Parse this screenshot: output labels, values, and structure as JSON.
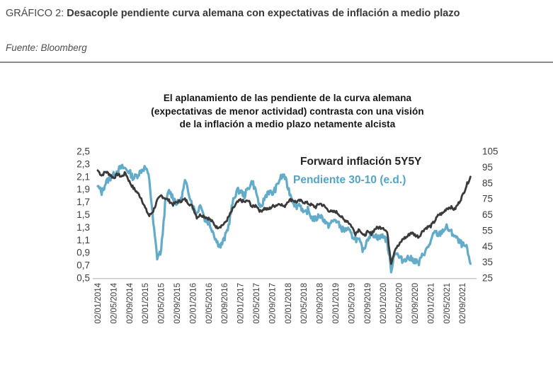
{
  "header": {
    "label": "GRÁFICO 2:",
    "title": "Desacople pendiente curva alemana con expectativas de inflación a medio plazo",
    "source": "Fuente: Bloomberg"
  },
  "chart": {
    "title_lines": [
      "El aplanamiento de las pendiente de la curva alemana",
      "(expectativas de menor actividad) contrasta con una visión",
      "de la inflación a medio plazo netamente alcista"
    ],
    "legend": [
      {
        "label": "Forward inflación 5Y5Y",
        "color": "#252525"
      },
      {
        "label": "Pendiente 30-10 (e.d.)",
        "color": "#54a4c6"
      }
    ]
  },
  "chart_data": {
    "type": "line",
    "title": "El aplanamiento de las pendiente de la curva alemana (expectativas de menor actividad) contrasta con una visión de la inflación a medio plazo netamente alcista",
    "grid": false,
    "legend_position": "top-right",
    "left_axis": {
      "ticks": [
        "2,5",
        "2,3",
        "2,1",
        "1,9",
        "1,7",
        "1,5",
        "1,3",
        "1,1",
        "0,9",
        "0,7",
        "0,5"
      ],
      "range": [
        0.5,
        2.5
      ]
    },
    "right_axis": {
      "ticks": [
        "105",
        "95",
        "85",
        "75",
        "65",
        "55",
        "45",
        "35",
        "25"
      ],
      "range": [
        25,
        105
      ]
    },
    "x_axis": {
      "ticks": [
        "02/01/2014",
        "02/05/2014",
        "02/09/2014",
        "02/01/2015",
        "02/05/2015",
        "02/09/2015",
        "02/01/2016",
        "02/05/2016",
        "02/09/2016",
        "02/01/2017",
        "02/05/2017",
        "02/09/2017",
        "02/01/2018",
        "02/05/2018",
        "02/09/2018",
        "02/01/2019",
        "02/05/2019",
        "02/09/2019",
        "02/01/2020",
        "02/05/2020",
        "02/09/2020",
        "02/01/2021",
        "02/05/2021",
        "02/09/2021"
      ]
    },
    "x_monthly": [
      "2014-01",
      "2014-02",
      "2014-03",
      "2014-04",
      "2014-05",
      "2014-06",
      "2014-07",
      "2014-08",
      "2014-09",
      "2014-10",
      "2014-11",
      "2014-12",
      "2015-01",
      "2015-02",
      "2015-03",
      "2015-04",
      "2015-05",
      "2015-06",
      "2015-07",
      "2015-08",
      "2015-09",
      "2015-10",
      "2015-11",
      "2015-12",
      "2016-01",
      "2016-02",
      "2016-03",
      "2016-04",
      "2016-05",
      "2016-06",
      "2016-07",
      "2016-08",
      "2016-09",
      "2016-10",
      "2016-11",
      "2016-12",
      "2017-01",
      "2017-02",
      "2017-03",
      "2017-04",
      "2017-05",
      "2017-06",
      "2017-07",
      "2017-08",
      "2017-09",
      "2017-10",
      "2017-11",
      "2017-12",
      "2018-01",
      "2018-02",
      "2018-03",
      "2018-04",
      "2018-05",
      "2018-06",
      "2018-07",
      "2018-08",
      "2018-09",
      "2018-10",
      "2018-11",
      "2018-12",
      "2019-01",
      "2019-02",
      "2019-03",
      "2019-04",
      "2019-05",
      "2019-06",
      "2019-07",
      "2019-08",
      "2019-09",
      "2019-10",
      "2019-11",
      "2019-12",
      "2020-01",
      "2020-02",
      "2020-03",
      "2020-04",
      "2020-05",
      "2020-06",
      "2020-07",
      "2020-08",
      "2020-09",
      "2020-10",
      "2020-11",
      "2020-12",
      "2021-01",
      "2021-02",
      "2021-03",
      "2021-04",
      "2021-05",
      "2021-06",
      "2021-07",
      "2021-08",
      "2021-09",
      "2021-10",
      "2021-11"
    ],
    "series": [
      {
        "name": "Forward inflación 5Y5Y",
        "axis": "left",
        "color": "#3a3a3a",
        "values": [
          2.2,
          2.12,
          2.18,
          2.14,
          2.08,
          2.14,
          2.1,
          2.16,
          2.02,
          1.92,
          1.85,
          1.76,
          1.6,
          1.48,
          1.56,
          1.72,
          1.8,
          1.76,
          1.72,
          1.66,
          1.7,
          1.72,
          1.74,
          1.68,
          1.62,
          1.46,
          1.5,
          1.47,
          1.44,
          1.38,
          1.3,
          1.32,
          1.36,
          1.46,
          1.58,
          1.68,
          1.73,
          1.7,
          1.72,
          1.62,
          1.65,
          1.55,
          1.6,
          1.58,
          1.63,
          1.65,
          1.68,
          1.62,
          1.72,
          1.74,
          1.7,
          1.72,
          1.7,
          1.68,
          1.65,
          1.62,
          1.68,
          1.64,
          1.58,
          1.54,
          1.55,
          1.5,
          1.42,
          1.4,
          1.32,
          1.2,
          1.28,
          1.16,
          1.22,
          1.2,
          1.28,
          1.3,
          1.3,
          1.22,
          0.74,
          0.96,
          1.02,
          1.12,
          1.15,
          1.22,
          1.18,
          1.15,
          1.25,
          1.3,
          1.32,
          1.4,
          1.5,
          1.52,
          1.6,
          1.62,
          1.58,
          1.68,
          1.8,
          1.96,
          2.1
        ]
      },
      {
        "name": "Pendiente 30-10 (e.d.)",
        "axis": "right",
        "color": "#62abc9",
        "values": [
          83,
          79,
          85,
          88,
          90,
          93,
          95,
          94,
          92,
          88,
          90,
          93,
          95,
          88,
          60,
          38,
          42,
          72,
          80,
          76,
          72,
          74,
          86,
          79,
          70,
          66,
          72,
          62,
          60,
          55,
          48,
          45,
          50,
          58,
          72,
          80,
          80,
          77,
          82,
          86,
          79,
          68,
          75,
          80,
          78,
          82,
          88,
          90,
          82,
          75,
          70,
          72,
          65,
          68,
          63,
          62,
          65,
          62,
          58,
          60,
          62,
          58,
          55,
          56,
          52,
          50,
          48,
          42,
          50,
          53,
          52,
          50,
          52,
          48,
          30,
          42,
          38,
          36,
          38,
          37,
          36,
          34,
          40,
          43,
          48,
          54,
          52,
          55,
          57,
          54,
          52,
          48,
          46,
          44,
          34
        ]
      }
    ]
  }
}
